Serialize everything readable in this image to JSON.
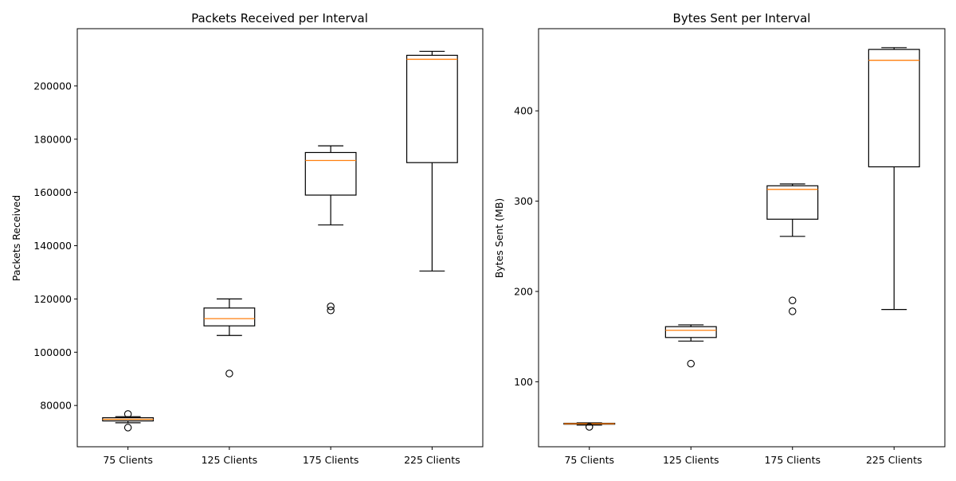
{
  "chart_data": [
    {
      "type": "box",
      "title": "Packets Received per Interval",
      "xlabel": "",
      "ylabel": "Packets Received",
      "ylim": [
        64500,
        221500
      ],
      "yticks": [
        80000,
        100000,
        120000,
        140000,
        160000,
        180000,
        200000
      ],
      "ytick_labels": [
        "80000",
        "100000",
        "120000",
        "140000",
        "160000",
        "180000",
        "200000"
      ],
      "categories": [
        "75 Clients",
        "125 Clients",
        "175 Clients",
        "225 Clients"
      ],
      "boxes": [
        {
          "whisker_low": 73500,
          "q1": 74200,
          "median": 74800,
          "q3": 75400,
          "whisker_high": 75800,
          "outliers": [
            76800,
            71700
          ]
        },
        {
          "whisker_low": 106300,
          "q1": 109900,
          "median": 112600,
          "q3": 116600,
          "whisker_high": 120000,
          "outliers": [
            92000
          ]
        },
        {
          "whisker_low": 147800,
          "q1": 159000,
          "median": 172000,
          "q3": 175000,
          "whisker_high": 177500,
          "outliers": [
            117200,
            115700
          ]
        },
        {
          "whisker_low": 130500,
          "q1": 171200,
          "median": 210000,
          "q3": 211500,
          "whisker_high": 213000,
          "outliers": []
        }
      ],
      "colors": {
        "box": "#000000",
        "median": "#ff7f0e"
      },
      "grid": false
    },
    {
      "type": "box",
      "title": "Bytes Sent per Interval",
      "xlabel": "",
      "ylabel": "Bytes Sent (MB)",
      "ylim": [
        28,
        491
      ],
      "yticks": [
        100,
        200,
        300,
        400
      ],
      "ytick_labels": [
        "100",
        "200",
        "300",
        "400"
      ],
      "categories": [
        "75 Clients",
        "125 Clients",
        "175 Clients",
        "225 Clients"
      ],
      "boxes": [
        {
          "whisker_low": 52,
          "q1": 53,
          "median": 53.5,
          "q3": 54,
          "whisker_high": 54.5,
          "outliers": [
            50
          ]
        },
        {
          "whisker_low": 145,
          "q1": 149,
          "median": 157,
          "q3": 161,
          "whisker_high": 163,
          "outliers": [
            120
          ]
        },
        {
          "whisker_low": 261,
          "q1": 280,
          "median": 313,
          "q3": 317,
          "whisker_high": 319,
          "outliers": [
            190,
            178
          ]
        },
        {
          "whisker_low": 180,
          "q1": 338,
          "median": 456,
          "q3": 468,
          "whisker_high": 470,
          "outliers": []
        }
      ],
      "colors": {
        "box": "#000000",
        "median": "#ff7f0e"
      },
      "grid": false
    }
  ]
}
